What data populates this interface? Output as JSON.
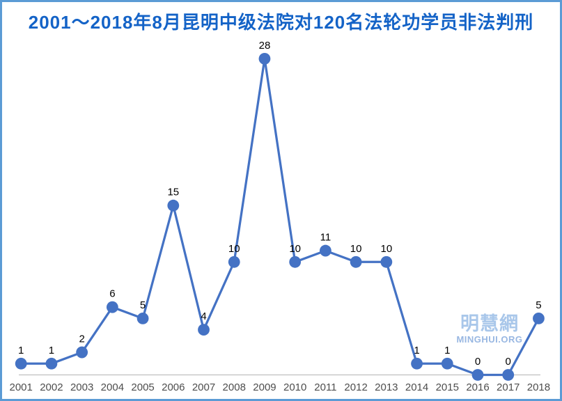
{
  "title": "2001～2018年8月昆明中级法院对120名法轮功学员非法判刑",
  "watermark": {
    "cn": "明慧網",
    "en": "MINGHUI.ORG"
  },
  "colors": {
    "title": "#1463C7",
    "series": "#4472C4",
    "axis_line": "#BFBFBF",
    "tick_label": "#4D4D4D",
    "data_label": "#000000",
    "border": "#5B9BD5",
    "watermark_cn": "#A9C7EA",
    "watermark_en": "#98B7E2"
  },
  "chart_data": {
    "type": "line",
    "title": "2001～2018年8月昆明中级法院对120名法轮功学员非法判刑",
    "categories": [
      "2001",
      "2002",
      "2003",
      "2004",
      "2005",
      "2006",
      "2007",
      "2008",
      "2009",
      "2010",
      "2011",
      "2012",
      "2013",
      "2014",
      "2015",
      "2016",
      "2017",
      "2018"
    ],
    "values": [
      1,
      1,
      2,
      6,
      5,
      15,
      4,
      10,
      28,
      10,
      11,
      10,
      10,
      1,
      1,
      0,
      0,
      5
    ],
    "xlabel": "",
    "ylabel": "",
    "ylim": [
      0,
      28
    ],
    "grid": false,
    "legend": "none",
    "markers": true,
    "data_labels": true
  }
}
